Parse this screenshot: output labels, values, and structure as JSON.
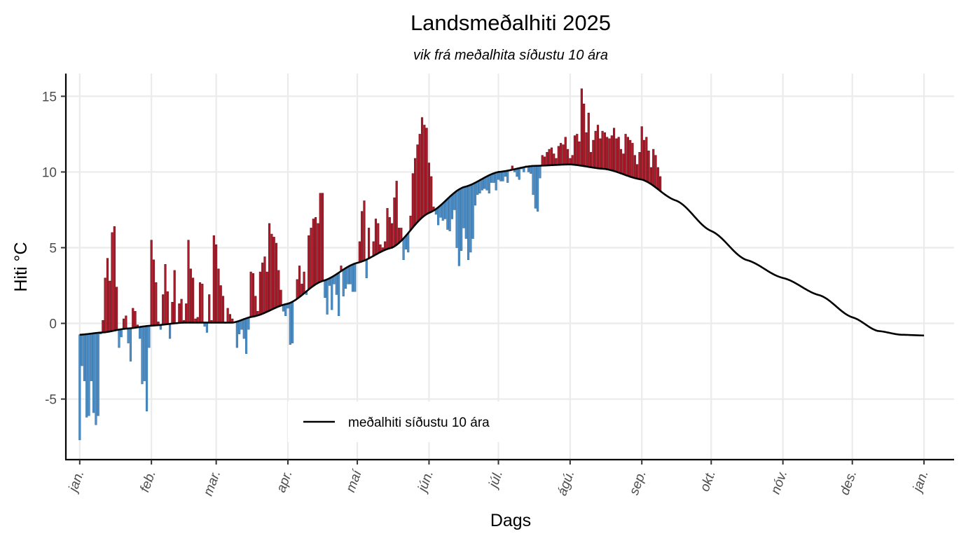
{
  "chart_data": {
    "type": "bar",
    "title": "Landsmeðalhiti 2025",
    "subtitle": "vik frá meðalhita síðustu 10 ára",
    "xlabel": "Dags",
    "ylabel": "Hiti °C",
    "ylim": [
      -9,
      16.5
    ],
    "yticks": [
      -5,
      0,
      5,
      10,
      15
    ],
    "ytick_labels": [
      "-5",
      "0",
      "5",
      "10",
      "15"
    ],
    "x_range_days": [
      -6,
      378
    ],
    "grid": true,
    "legend_position": "bottom-center",
    "colors": {
      "above": "#b2182b",
      "below": "#4a8fc9",
      "normal_line": "#000000"
    },
    "months": [
      {
        "label": "jan.",
        "day": 0
      },
      {
        "label": "feb.",
        "day": 31
      },
      {
        "label": "mar.",
        "day": 59
      },
      {
        "label": "apr.",
        "day": 90
      },
      {
        "label": "maí",
        "day": 120
      },
      {
        "label": "jún.",
        "day": 151
      },
      {
        "label": "júl.",
        "day": 181
      },
      {
        "label": "ágú.",
        "day": 212
      },
      {
        "label": "sep.",
        "day": 243
      },
      {
        "label": "okt.",
        "day": 273
      },
      {
        "label": "nóv.",
        "day": 304
      },
      {
        "label": "des.",
        "day": 334
      },
      {
        "label": "jan.",
        "day": 365
      }
    ],
    "normal_series": {
      "name": "meðalhiti síðustu 10 ára",
      "knots": [
        [
          0,
          -0.75
        ],
        [
          10,
          -0.6
        ],
        [
          20,
          -0.35
        ],
        [
          31,
          -0.15
        ],
        [
          45,
          0.05
        ],
        [
          59,
          0.05
        ],
        [
          66,
          0.05
        ],
        [
          75,
          0.45
        ],
        [
          90,
          1.3
        ],
        [
          105,
          2.8
        ],
        [
          120,
          4.0
        ],
        [
          135,
          5.0
        ],
        [
          151,
          7.3
        ],
        [
          166,
          9.0
        ],
        [
          181,
          10.0
        ],
        [
          196,
          10.4
        ],
        [
          212,
          10.5
        ],
        [
          227,
          10.2
        ],
        [
          243,
          9.5
        ],
        [
          258,
          8.1
        ],
        [
          273,
          6.1
        ],
        [
          288,
          4.2
        ],
        [
          304,
          3.0
        ],
        [
          320,
          1.85
        ],
        [
          334,
          0.4
        ],
        [
          345,
          -0.5
        ],
        [
          355,
          -0.75
        ],
        [
          365,
          -0.8
        ]
      ]
    },
    "series": [
      {
        "name": "Landsmeðalhiti 2025",
        "start_day": 0,
        "values": [
          -7.7,
          -2.8,
          -3.8,
          -6.2,
          -6.1,
          -3.8,
          -5.9,
          -6.7,
          -6.1,
          -0.7,
          0.2,
          3.0,
          4.3,
          2.8,
          6.0,
          6.4,
          2.4,
          -1.6,
          -0.9,
          0.3,
          0.5,
          -1.3,
          -2.5,
          1.0,
          0.8,
          -0.1,
          -1.0,
          -4.0,
          -3.8,
          -5.8,
          -1.6,
          5.5,
          4.2,
          2.7,
          0.1,
          -0.4,
          1.9,
          3.9,
          2.1,
          -1.0,
          1.4,
          3.5,
          0.0,
          1.3,
          1.6,
          0.2,
          1.3,
          5.5,
          3.6,
          3.0,
          0.3,
          0.4,
          2.7,
          2.6,
          -0.2,
          -0.6,
          1.9,
          0.2,
          5.8,
          5.2,
          3.6,
          2.5,
          1.8,
          0.0,
          1.0,
          0.6,
          0.3,
          0.1,
          -1.6,
          -0.7,
          -0.4,
          -1.0,
          -2.0,
          -0.4,
          3.4,
          3.3,
          1.8,
          0.8,
          3.4,
          4.0,
          4.4,
          3.4,
          6.6,
          5.9,
          5.7,
          5.3,
          3.5,
          2.2,
          0.8,
          0.5,
          1.0,
          -1.4,
          -1.3,
          1.5,
          2.9,
          3.8,
          2.6,
          3.4,
          1.9,
          5.8,
          6.3,
          6.9,
          7.0,
          6.6,
          8.6,
          8.6,
          1.7,
          0.6,
          2.5,
          0.9,
          2.6,
          1.9,
          0.5,
          3.8,
          1.8,
          2.3,
          2.6,
          2.6,
          2.1,
          2.1,
          4.0,
          5.4,
          7.4,
          8.1,
          3.0,
          6.3,
          4.4,
          5.4,
          6.9,
          6.6,
          5.2,
          5.0,
          5.4,
          7.6,
          7.0,
          6.6,
          8.3,
          9.4,
          6.3,
          6.3,
          4.2,
          4.9,
          4.7,
          7.1,
          9.9,
          10.9,
          11.8,
          12.5,
          13.6,
          13.1,
          12.9,
          10.6,
          9.7,
          7.7,
          7.2,
          6.5,
          7.0,
          6.8,
          6.9,
          6.2,
          6.1,
          6.9,
          7.5,
          5.0,
          3.8,
          4.8,
          6.3,
          5.6,
          4.2,
          4.7,
          5.6,
          7.8,
          8.5,
          8.6,
          8.8,
          8.9,
          8.8,
          8.6,
          9.3,
          9.3,
          8.8,
          9.5,
          9.4,
          9.4,
          9.7,
          9.3,
          10.1,
          10.4,
          10.0,
          9.7,
          9.5,
          10.2,
          10.0,
          10.4,
          10.0,
          9.9,
          8.5,
          7.6,
          7.4,
          9.6,
          11.1,
          11.0,
          11.3,
          11.5,
          11.6,
          11.2,
          10.9,
          11.7,
          11.9,
          11.8,
          12.3,
          11.5,
          10.9,
          11.1,
          12.4,
          12.5,
          12.0,
          15.5,
          14.5,
          12.6,
          13.9,
          11.3,
          12.1,
          12.7,
          13.1,
          12.2,
          12.7,
          12.6,
          12.3,
          12.2,
          12.4,
          12.9,
          12.2,
          12.3,
          11.5,
          11.2,
          12.5,
          12.3,
          12.1,
          11.9,
          11.1,
          10.5,
          11.3,
          13.0,
          12.1,
          12.3,
          11.4,
          10.3,
          11.5,
          11.1,
          10.3,
          9.7
        ]
      }
    ]
  }
}
